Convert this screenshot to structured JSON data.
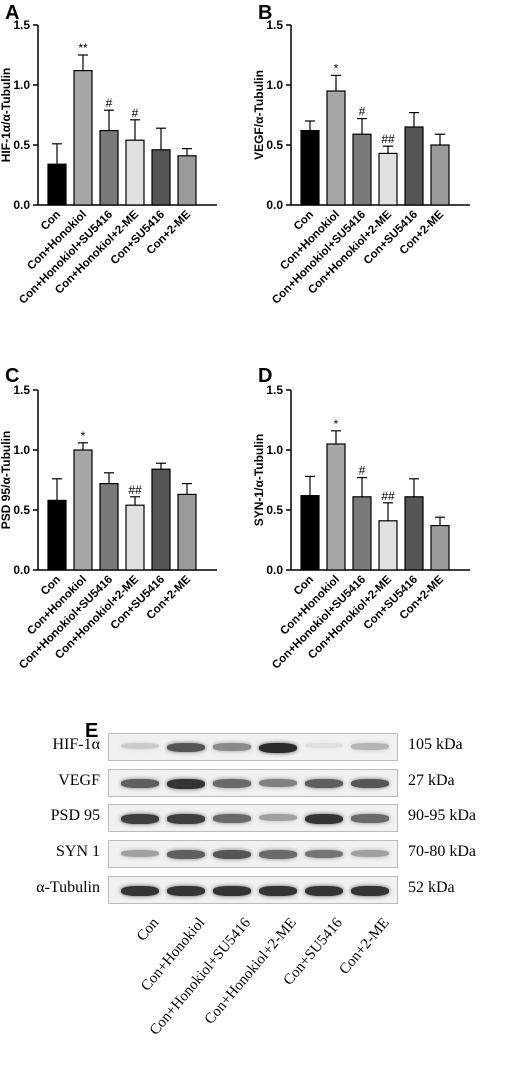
{
  "chart_data": [
    {
      "panel": "A",
      "type": "bar",
      "ylabel": "HIF-1α/α-Tubulin",
      "ylim": [
        0,
        1.5
      ],
      "yticks": [
        "0.0",
        "0.5",
        "1.0",
        "1.5"
      ],
      "categories": [
        "Con",
        "Con+Honokiol",
        "Con+Honokiol+SU5416",
        "Con+Honokiol+2-ME",
        "Con+SU5416",
        "Con+2-ME"
      ],
      "values": [
        0.34,
        1.12,
        0.62,
        0.54,
        0.46,
        0.41
      ],
      "errors": [
        0.17,
        0.13,
        0.17,
        0.17,
        0.18,
        0.06
      ],
      "annotations": [
        "",
        "**",
        "#",
        "#",
        "",
        ""
      ]
    },
    {
      "panel": "B",
      "type": "bar",
      "ylabel": "VEGF/α-Tubulin",
      "ylim": [
        0,
        1.5
      ],
      "yticks": [
        "0.0",
        "0.5",
        "1.0",
        "1.5"
      ],
      "categories": [
        "Con",
        "Con+Honokiol",
        "Con+Honokiol+SU5416",
        "Con+Honokiol+2-ME",
        "Con+SU5416",
        "Con+2-ME"
      ],
      "values": [
        0.62,
        0.95,
        0.59,
        0.43,
        0.65,
        0.5
      ],
      "errors": [
        0.08,
        0.13,
        0.13,
        0.06,
        0.12,
        0.09
      ],
      "annotations": [
        "",
        "*",
        "#",
        "##",
        "",
        ""
      ]
    },
    {
      "panel": "C",
      "type": "bar",
      "ylabel": "PSD 95/α-Tubulin",
      "ylim": [
        0,
        1.5
      ],
      "yticks": [
        "0.0",
        "0.5",
        "1.0",
        "1.5"
      ],
      "categories": [
        "Con",
        "Con+Honokiol",
        "Con+Honokiol+SU5416",
        "Con+Honokiol+2-ME",
        "Con+SU5416",
        "Con+2-ME"
      ],
      "values": [
        0.58,
        1.0,
        0.72,
        0.54,
        0.84,
        0.63
      ],
      "errors": [
        0.18,
        0.06,
        0.09,
        0.07,
        0.05,
        0.09
      ],
      "annotations": [
        "",
        "*",
        "",
        "##",
        "",
        ""
      ]
    },
    {
      "panel": "D",
      "type": "bar",
      "ylabel": "SYN-1/α-Tubulin",
      "ylim": [
        0,
        1.5
      ],
      "yticks": [
        "0.0",
        "0.5",
        "1.0",
        "1.5"
      ],
      "categories": [
        "Con",
        "Con+Honokiol",
        "Con+Honokiol+SU5416",
        "Con+Honokiol+2-ME",
        "Con+SU5416",
        "Con+2-ME"
      ],
      "values": [
        0.62,
        1.05,
        0.61,
        0.41,
        0.61,
        0.37
      ],
      "errors": [
        0.16,
        0.11,
        0.16,
        0.15,
        0.15,
        0.07
      ],
      "annotations": [
        "",
        "*",
        "#",
        "##",
        "",
        ""
      ]
    }
  ],
  "bar_colors": [
    "#000000",
    "#a6a6a6",
    "#7a7a7a",
    "#e0e0e0",
    "#555555",
    "#9b9b9b"
  ],
  "panel_letters": {
    "a": "A",
    "b": "B",
    "c": "C",
    "d": "D",
    "e": "E"
  },
  "blot": {
    "proteins": [
      {
        "name": "HIF-1α",
        "kda": "105 kDa",
        "intensity": [
          0.15,
          0.7,
          0.45,
          0.9,
          0.05,
          0.25
        ]
      },
      {
        "name": "VEGF",
        "kda": "27 kDa",
        "intensity": [
          0.65,
          0.85,
          0.6,
          0.5,
          0.65,
          0.7
        ]
      },
      {
        "name": "PSD 95",
        "kda": "90-95 kDa",
        "intensity": [
          0.8,
          0.8,
          0.6,
          0.35,
          0.85,
          0.6
        ]
      },
      {
        "name": "SYN 1",
        "kda": "70-80 kDa",
        "intensity": [
          0.35,
          0.65,
          0.7,
          0.6,
          0.55,
          0.35
        ]
      },
      {
        "name": "α-Tubulin",
        "kda": "52 kDa",
        "intensity": [
          0.85,
          0.85,
          0.85,
          0.85,
          0.85,
          0.85
        ]
      }
    ],
    "lanes": [
      "Con",
      "Con+Honokiol",
      "Con+Honokiol+SU5416",
      "Con+Honokiol+2-ME",
      "Con+SU5416",
      "Con+2-ME"
    ]
  }
}
